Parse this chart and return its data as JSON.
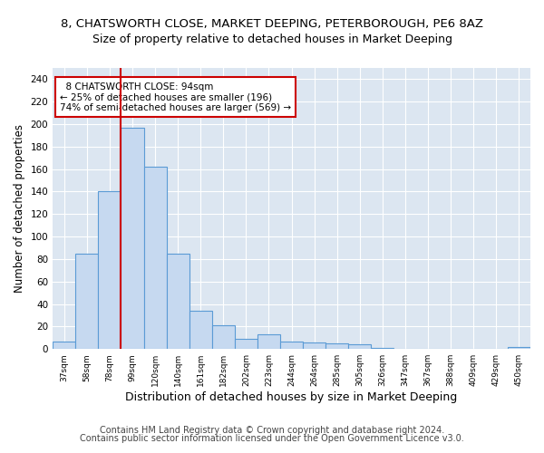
{
  "title1": "8, CHATSWORTH CLOSE, MARKET DEEPING, PETERBOROUGH, PE6 8AZ",
  "title2": "Size of property relative to detached houses in Market Deeping",
  "xlabel": "Distribution of detached houses by size in Market Deeping",
  "ylabel": "Number of detached properties",
  "footer1": "Contains HM Land Registry data © Crown copyright and database right 2024.",
  "footer2": "Contains public sector information licensed under the Open Government Licence v3.0.",
  "categories": [
    "37sqm",
    "58sqm",
    "78sqm",
    "99sqm",
    "120sqm",
    "140sqm",
    "161sqm",
    "182sqm",
    "202sqm",
    "223sqm",
    "244sqm",
    "264sqm",
    "285sqm",
    "305sqm",
    "326sqm",
    "347sqm",
    "367sqm",
    "388sqm",
    "409sqm",
    "429sqm",
    "450sqm"
  ],
  "values": [
    7,
    85,
    140,
    197,
    162,
    85,
    34,
    21,
    9,
    13,
    7,
    6,
    5,
    4,
    1,
    0,
    0,
    0,
    0,
    0,
    2
  ],
  "bar_color": "#c6d9f0",
  "bar_edge_color": "#5b9bd5",
  "vline_x": 2.5,
  "vline_color": "#cc0000",
  "annotation_text": "  8 CHATSWORTH CLOSE: 94sqm\n← 25% of detached houses are smaller (196)\n74% of semi-detached houses are larger (569) →",
  "annotation_box_color": "#ffffff",
  "annotation_box_edge": "#cc0000",
  "ylim": [
    0,
    250
  ],
  "yticks": [
    0,
    20,
    40,
    60,
    80,
    100,
    120,
    140,
    160,
    180,
    200,
    220,
    240
  ],
  "plot_bg": "#dce6f1",
  "title1_fontsize": 9.5,
  "title2_fontsize": 9,
  "xlabel_fontsize": 9,
  "ylabel_fontsize": 8.5,
  "footer_fontsize": 7
}
